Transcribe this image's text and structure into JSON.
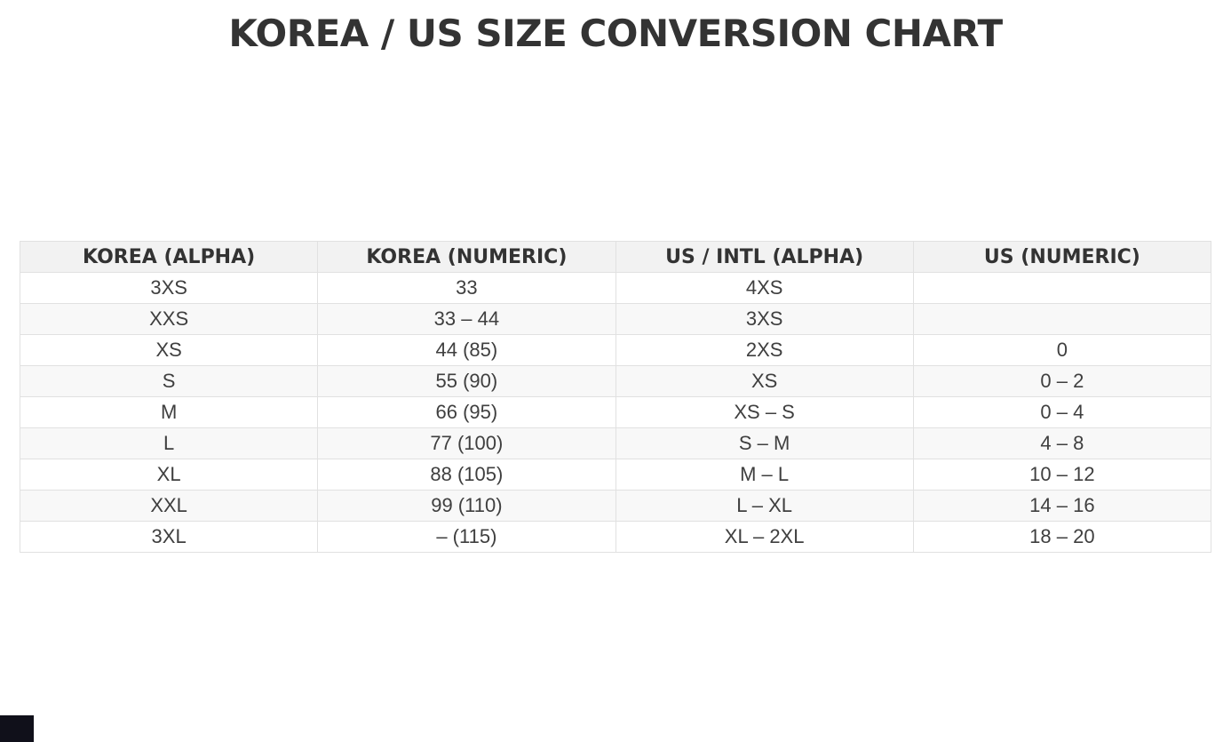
{
  "page": {
    "title": "KOREA / US SIZE CONVERSION CHART"
  },
  "colors": {
    "background": "#ffffff",
    "title_text": "#333333",
    "header_bg": "#f2f2f2",
    "header_text": "#333333",
    "cell_text": "#3f3f3f",
    "row_alt_bg": "#f8f8f8",
    "border": "#e1e1e1",
    "corner_square": "#10101a"
  },
  "chart_data": {
    "type": "table",
    "title": "KOREA / US SIZE CONVERSION CHART",
    "columns": [
      "KOREA (ALPHA)",
      "KOREA (NUMERIC)",
      "US / INTL (ALPHA)",
      "US (NUMERIC)"
    ],
    "rows": [
      [
        "3XS",
        "33",
        "4XS",
        ""
      ],
      [
        "XXS",
        "33 – 44",
        "3XS",
        ""
      ],
      [
        "XS",
        "44 (85)",
        "2XS",
        "0"
      ],
      [
        "S",
        "55 (90)",
        "XS",
        "0 – 2"
      ],
      [
        "M",
        "66 (95)",
        "XS – S",
        "0 – 4"
      ],
      [
        "L",
        "77 (100)",
        "S – M",
        "4 – 8"
      ],
      [
        "XL",
        "88 (105)",
        "M – L",
        "10 – 12"
      ],
      [
        "XXL",
        "99 (110)",
        "L – XL",
        "14 – 16"
      ],
      [
        "3XL",
        "– (115)",
        "XL – 2XL",
        "18 – 20"
      ]
    ],
    "layout": {
      "zebra_striping": true,
      "equal_column_widths": true,
      "cell_alignment": "center"
    }
  }
}
